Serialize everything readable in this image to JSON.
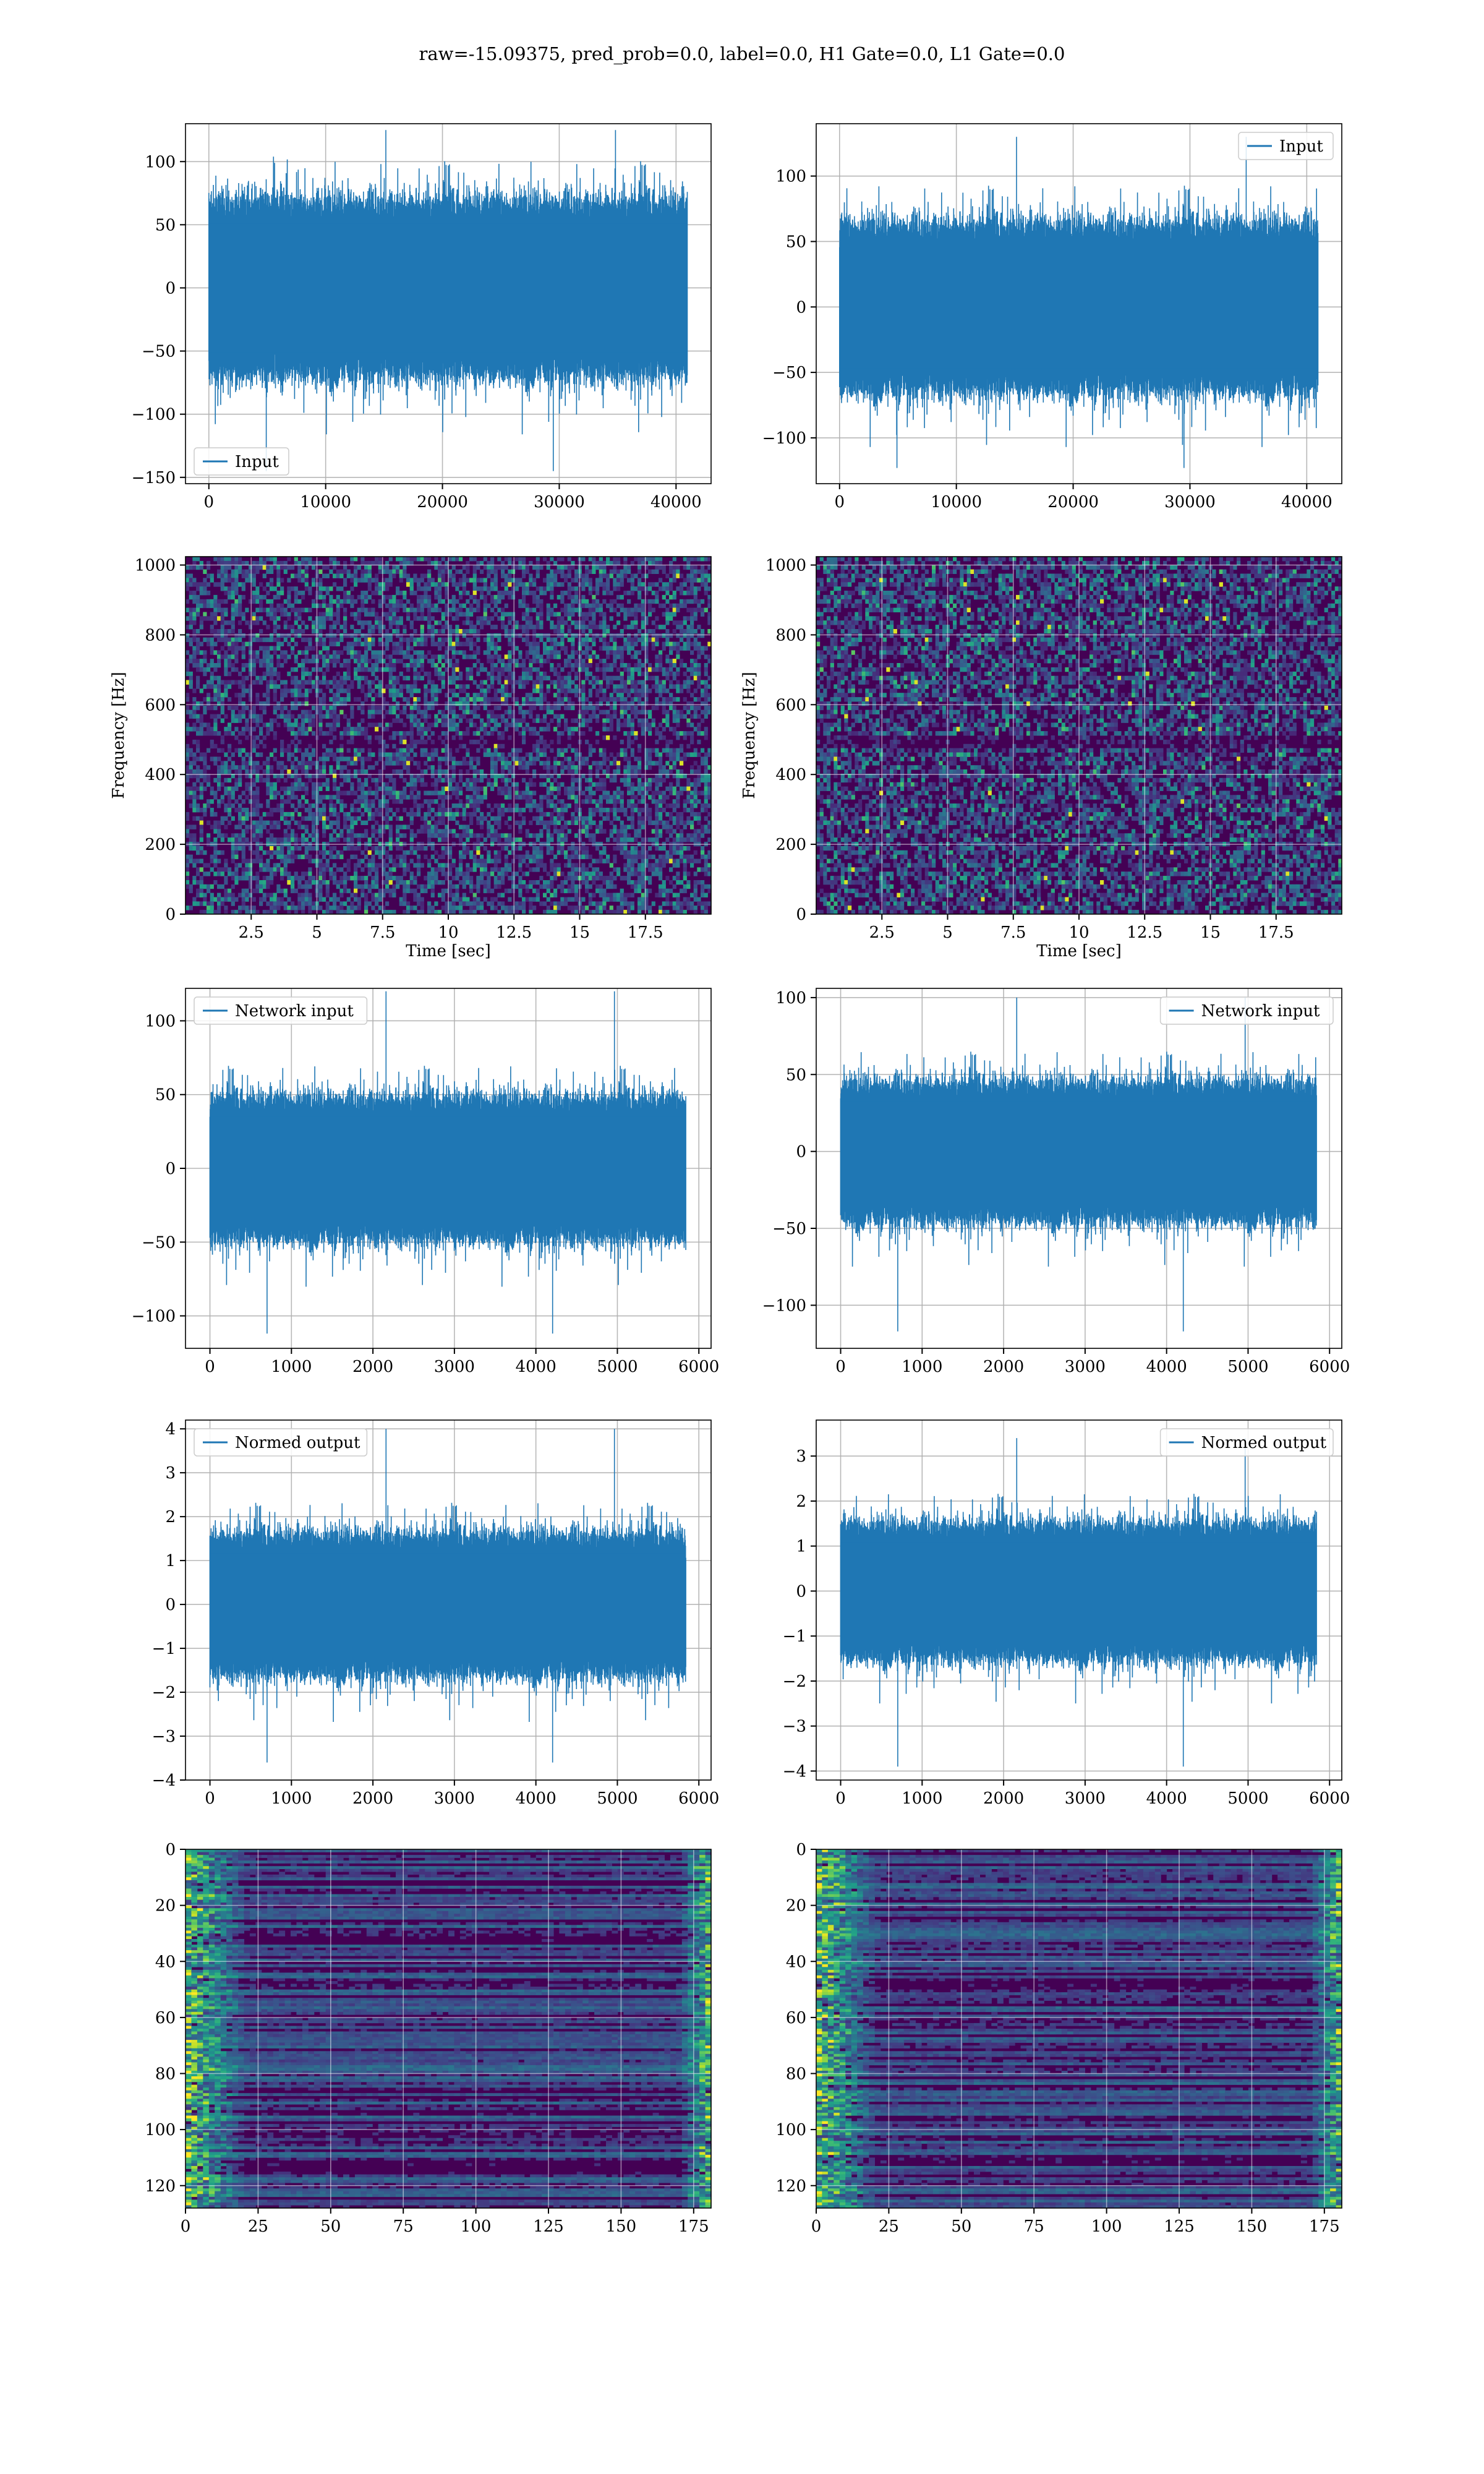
{
  "title": "raw=-15.09375, pred_prob=0.0, label=0.0, H1 Gate=0.0, L1 Gate=0.0",
  "colors": {
    "line": "#1f77b4",
    "grid": "#b0b0b0",
    "viridis_low": "#440154",
    "viridis_mid": "#21918c",
    "viridis_high": "#fde725"
  },
  "chart_data": [
    {
      "id": "input-h1",
      "type": "line",
      "ylim": [
        -155,
        130
      ],
      "xlim": [
        -2000,
        43000
      ],
      "xticks": [
        0,
        10000,
        20000,
        30000,
        40000
      ],
      "yticks": [
        -150,
        -100,
        -50,
        0,
        50,
        100
      ],
      "legend": "lower left",
      "series": [
        {
          "name": "Input",
          "x_range": [
            0,
            40960
          ],
          "band": [
            -65,
            65
          ],
          "peak": [
            -145,
            125
          ],
          "samples": 40960
        }
      ],
      "grid": true
    },
    {
      "id": "input-l1",
      "type": "line",
      "ylim": [
        -135,
        140
      ],
      "xlim": [
        -2000,
        43000
      ],
      "xticks": [
        0,
        10000,
        20000,
        30000,
        40000
      ],
      "yticks": [
        -100,
        -50,
        0,
        50,
        100
      ],
      "legend": "upper right",
      "series": [
        {
          "name": "Input",
          "x_range": [
            0,
            40960
          ],
          "band": [
            -60,
            60
          ],
          "peak": [
            -123,
            130
          ],
          "samples": 40960
        }
      ],
      "grid": true
    },
    {
      "id": "spectrogram-h1",
      "type": "heatmap",
      "xlim": [
        0,
        20
      ],
      "ylim": [
        0,
        1024
      ],
      "xticks": [
        2.5,
        5.0,
        7.5,
        10.0,
        12.5,
        15.0,
        17.5
      ],
      "yticks": [
        0,
        200,
        400,
        600,
        800,
        1000
      ],
      "xlabel": "Time [sec]",
      "ylabel": "Frequency [Hz]",
      "colormap": "viridis",
      "grid": true,
      "dark_band_hz": 500
    },
    {
      "id": "spectrogram-l1",
      "type": "heatmap",
      "xlim": [
        0,
        20
      ],
      "ylim": [
        0,
        1024
      ],
      "xticks": [
        2.5,
        5.0,
        7.5,
        10.0,
        12.5,
        15.0,
        17.5
      ],
      "yticks": [
        0,
        200,
        400,
        600,
        800,
        1000
      ],
      "xlabel": "Time [sec]",
      "ylabel": "Frequency [Hz]",
      "colormap": "viridis",
      "grid": true,
      "dark_band_hz": 500
    },
    {
      "id": "network-input-h1",
      "type": "line",
      "ylim": [
        -122,
        122
      ],
      "xlim": [
        -300,
        6150
      ],
      "xticks": [
        0,
        1000,
        2000,
        3000,
        4000,
        5000,
        6000
      ],
      "yticks": [
        -100,
        -50,
        0,
        50,
        100
      ],
      "legend": "upper left",
      "series": [
        {
          "name": "Network input",
          "x_range": [
            0,
            5840
          ],
          "band": [
            -45,
            45
          ],
          "peak": [
            -112,
            120
          ],
          "samples": 5840
        }
      ],
      "grid": true
    },
    {
      "id": "network-input-l1",
      "type": "line",
      "ylim": [
        -128,
        106
      ],
      "xlim": [
        -300,
        6150
      ],
      "xticks": [
        0,
        1000,
        2000,
        3000,
        4000,
        5000,
        6000
      ],
      "yticks": [
        -100,
        -50,
        0,
        50,
        100
      ],
      "legend": "upper right",
      "series": [
        {
          "name": "Network input",
          "x_range": [
            0,
            5840
          ],
          "band": [
            -42,
            42
          ],
          "peak": [
            -117,
            100
          ],
          "samples": 5840
        }
      ],
      "grid": true
    },
    {
      "id": "normed-output-h1",
      "type": "line",
      "ylim": [
        -4.0,
        4.2
      ],
      "xlim": [
        -300,
        6150
      ],
      "xticks": [
        0,
        1000,
        2000,
        3000,
        4000,
        5000,
        6000
      ],
      "yticks": [
        -4,
        -3,
        -2,
        -1,
        0,
        1,
        2,
        3,
        4
      ],
      "legend": "upper left",
      "series": [
        {
          "name": "Normed output",
          "x_range": [
            0,
            5840
          ],
          "band": [
            -1.5,
            1.5
          ],
          "peak": [
            -3.6,
            4.0
          ],
          "samples": 5840
        }
      ],
      "grid": true
    },
    {
      "id": "normed-output-l1",
      "type": "line",
      "ylim": [
        -4.2,
        3.8
      ],
      "xlim": [
        -300,
        6150
      ],
      "xticks": [
        0,
        1000,
        2000,
        3000,
        4000,
        5000,
        6000
      ],
      "yticks": [
        -4,
        -3,
        -2,
        -1,
        0,
        1,
        2,
        3
      ],
      "legend": "upper right",
      "series": [
        {
          "name": "Normed output",
          "x_range": [
            0,
            5840
          ],
          "band": [
            -1.4,
            1.4
          ],
          "peak": [
            -3.9,
            3.4
          ],
          "samples": 5840
        }
      ],
      "grid": true
    },
    {
      "id": "feature-map-h1",
      "type": "heatmap",
      "xlim": [
        0,
        181
      ],
      "ylim": [
        128,
        0
      ],
      "xticks": [
        0,
        25,
        50,
        75,
        100,
        125,
        150,
        175
      ],
      "yticks": [
        0,
        20,
        40,
        60,
        80,
        100,
        120
      ],
      "colormap": "viridis",
      "grid": true,
      "rows": 128
    },
    {
      "id": "feature-map-l1",
      "type": "heatmap",
      "xlim": [
        0,
        181
      ],
      "ylim": [
        128,
        0
      ],
      "xticks": [
        0,
        25,
        50,
        75,
        100,
        125,
        150,
        175
      ],
      "yticks": [
        0,
        20,
        40,
        60,
        80,
        100,
        120
      ],
      "colormap": "viridis",
      "grid": true,
      "rows": 128
    }
  ]
}
